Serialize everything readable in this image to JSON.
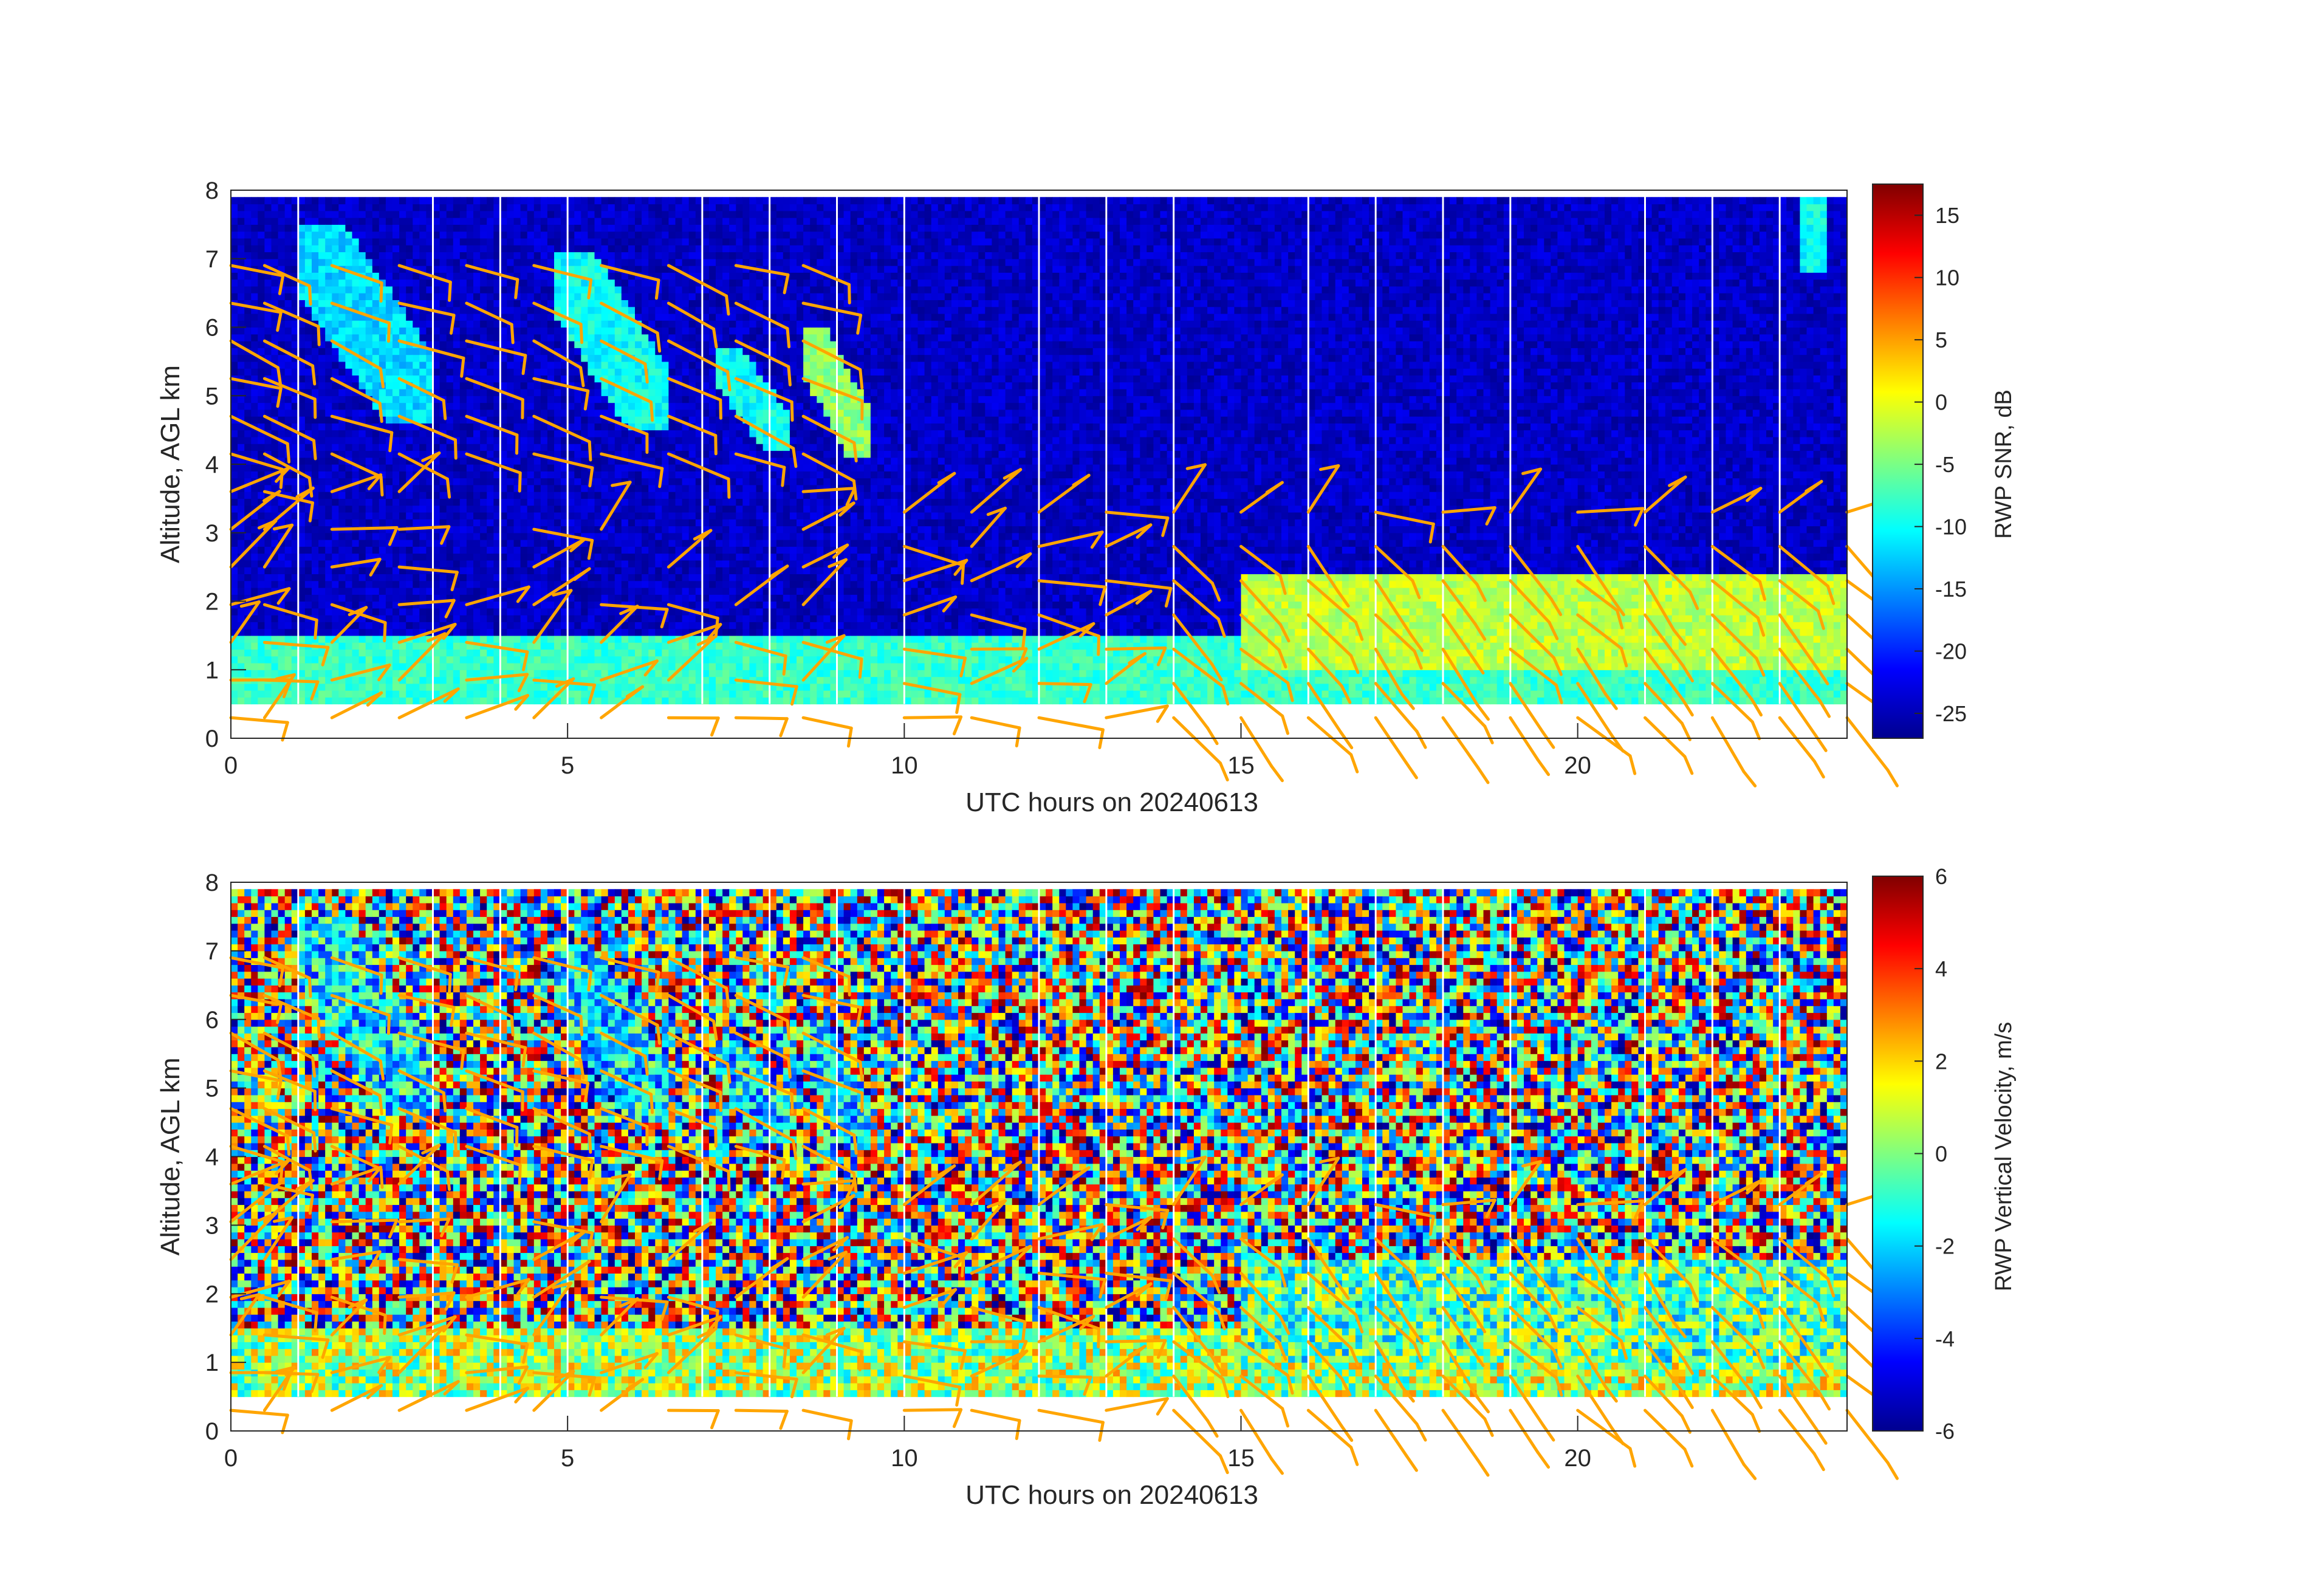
{
  "chart_data": [
    {
      "type": "heatmap",
      "title": "",
      "xlabel": "UTC hours on 20240613",
      "ylabel": "Altitude, AGL km",
      "xlim": [
        0,
        24
      ],
      "ylim": [
        0,
        8
      ],
      "x_ticks": [
        0,
        5,
        10,
        15,
        20
      ],
      "y_ticks": [
        0,
        1,
        2,
        3,
        4,
        5,
        6,
        7,
        8
      ],
      "data_gate_altitude_range_km": [
        0.5,
        7.9
      ],
      "colormap": "jet",
      "colorbar": {
        "label": "RWP SNR, dB",
        "range": [
          -27,
          17.5
        ],
        "ticks": [
          -25,
          -20,
          -15,
          -10,
          -5,
          0,
          5,
          10,
          15
        ]
      },
      "background_value": -24,
      "features": [
        {
          "description": "boundary layer echo",
          "x_range": [
            0,
            24
          ],
          "y_range": [
            0.5,
            1.5
          ],
          "value": -8
        },
        {
          "description": "elevated layer echo",
          "x_range": [
            15,
            24
          ],
          "y_range": [
            1.0,
            2.4
          ],
          "value": -2
        },
        {
          "description": "sloping cloud band",
          "x_range": [
            1,
            3
          ],
          "y_range": [
            4.6,
            7.5
          ],
          "value": -12
        },
        {
          "description": "sloping cloud band",
          "x_range": [
            4.8,
            6.5
          ],
          "y_range": [
            4.5,
            7.1
          ],
          "value": -10
        },
        {
          "description": "sloping cloud band",
          "x_range": [
            7.2,
            8.3
          ],
          "y_range": [
            4.2,
            5.7
          ],
          "value": -10
        },
        {
          "description": "sloping cloud band",
          "x_range": [
            8.5,
            9.5
          ],
          "y_range": [
            4.1,
            6.0
          ],
          "value": -4
        },
        {
          "description": "high thin echo",
          "x_range": [
            23.3,
            23.7
          ],
          "y_range": [
            6.8,
            7.9
          ],
          "value": -10
        }
      ],
      "profile_gaps_hours": [
        1,
        3,
        4,
        5,
        7,
        8,
        9,
        10,
        12,
        13,
        14,
        16,
        17,
        18,
        19,
        21,
        22,
        23
      ],
      "wind_barb_color": "#ffa500",
      "wind_barbs": "overlaid wind barbs along profile times"
    },
    {
      "type": "heatmap",
      "title": "",
      "xlabel": "UTC hours on 20240613",
      "ylabel": "Altitude, AGL km",
      "xlim": [
        0,
        24
      ],
      "ylim": [
        0,
        8
      ],
      "x_ticks": [
        0,
        5,
        10,
        15,
        20
      ],
      "y_ticks": [
        0,
        1,
        2,
        3,
        4,
        5,
        6,
        7,
        8
      ],
      "data_gate_altitude_range_km": [
        0.5,
        7.9
      ],
      "colormap": "jet",
      "colorbar": {
        "label": "RWP Vertical Velocity, m/s",
        "range": [
          -6,
          6
        ],
        "ticks": [
          -6,
          -4,
          -2,
          0,
          2,
          4,
          6
        ]
      },
      "background": "noisy values spanning -6 to 6",
      "features": [
        {
          "description": "boundary layer near-zero velocity",
          "x_range": [
            0,
            24
          ],
          "y_range": [
            0.5,
            1.5
          ],
          "value": 0.5
        },
        {
          "description": "elevated layer",
          "x_range": [
            15,
            24
          ],
          "y_range": [
            1.0,
            2.5
          ],
          "value": -0.5
        },
        {
          "description": "falling precipitation band",
          "x_range": [
            1,
            3
          ],
          "y_range": [
            4.6,
            7.5
          ],
          "value": -1.8
        },
        {
          "description": "falling precipitation band",
          "x_range": [
            4.8,
            6.5
          ],
          "y_range": [
            4.5,
            7.1
          ],
          "value": -1.8
        },
        {
          "description": "falling precipitation band",
          "x_range": [
            7.2,
            8.3
          ],
          "y_range": [
            4.2,
            5.7
          ],
          "value": -1.8
        },
        {
          "description": "falling precipitation band",
          "x_range": [
            8.5,
            9.5
          ],
          "y_range": [
            4.1,
            6.0
          ],
          "value": -1.8
        }
      ],
      "profile_gaps_hours": [
        1,
        3,
        4,
        5,
        7,
        8,
        9,
        10,
        12,
        13,
        14,
        16,
        17,
        18,
        19,
        21,
        22,
        23
      ],
      "wind_barb_color": "#ffa500",
      "wind_barbs": "overlaid wind barbs along profile times"
    }
  ]
}
